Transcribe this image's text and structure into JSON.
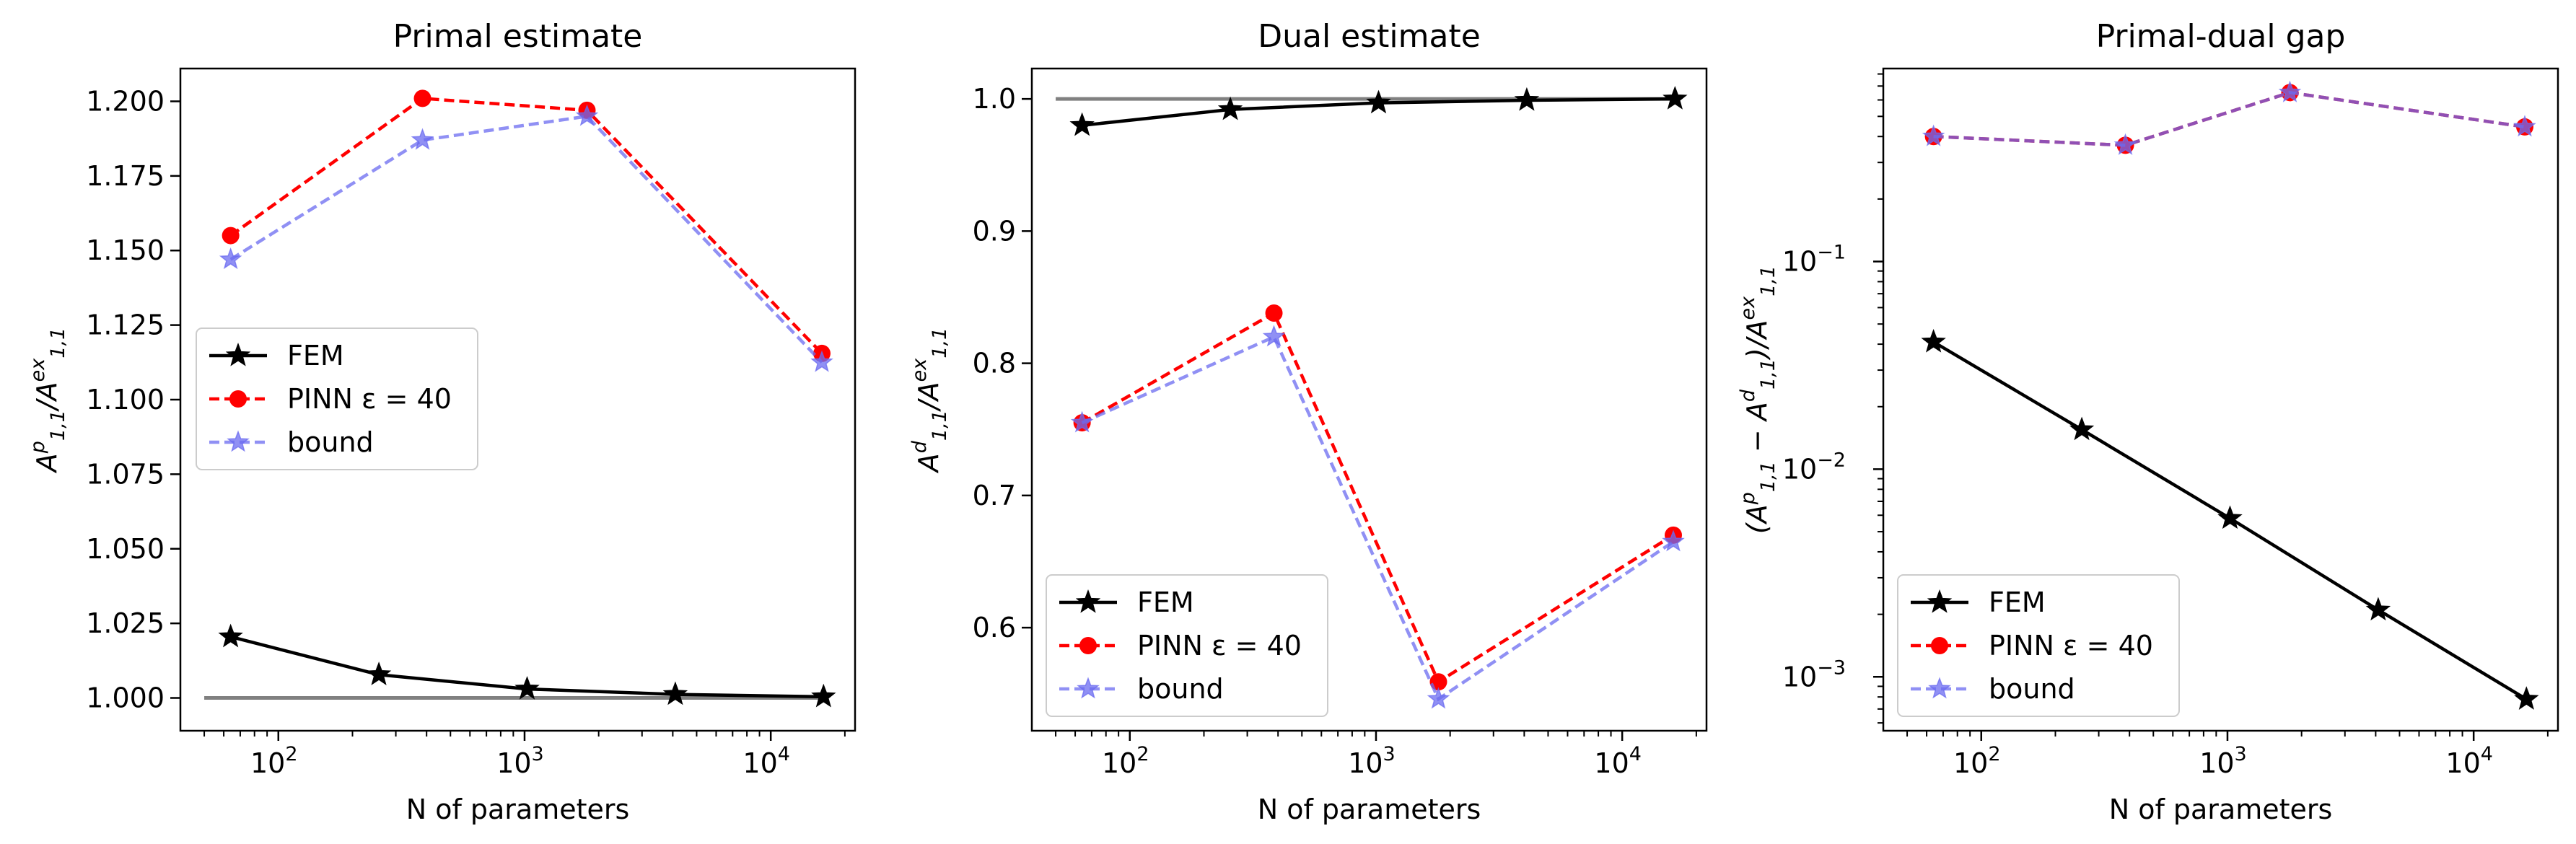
{
  "chart_data": [
    {
      "type": "line",
      "title": "Primal estimate",
      "xlabel": "N of parameters",
      "ylabel": "A^p_{1,1}/A^{ex}_{1,1}",
      "xscale": "log",
      "yscale": "linear",
      "xlim": [
        40,
        22000
      ],
      "ylim": [
        0.989,
        1.211
      ],
      "xticks": [
        {
          "value": 100,
          "label": "10",
          "exp": "2"
        },
        {
          "value": 1000,
          "label": "10",
          "exp": "3"
        },
        {
          "value": 10000,
          "label": "10",
          "exp": "4"
        }
      ],
      "yticks": [
        {
          "value": 1.0,
          "label": "1.000"
        },
        {
          "value": 1.025,
          "label": "1.025"
        },
        {
          "value": 1.05,
          "label": "1.050"
        },
        {
          "value": 1.075,
          "label": "1.075"
        },
        {
          "value": 1.1,
          "label": "1.100"
        },
        {
          "value": 1.125,
          "label": "1.125"
        },
        {
          "value": 1.15,
          "label": "1.150"
        },
        {
          "value": 1.175,
          "label": "1.175"
        },
        {
          "value": 1.2,
          "label": "1.200"
        }
      ],
      "legend_position": "center-left",
      "legend": [
        "FEM",
        "PINN ε = 40",
        "bound"
      ],
      "reference_line": {
        "x": [
          50,
          16384
        ],
        "y": [
          1.0,
          1.0
        ],
        "color": "#808080"
      },
      "series": [
        {
          "name": "FEM",
          "color": "#000000",
          "x": [
            64,
            256,
            1024,
            4096,
            16384
          ],
          "y": [
            1.0205,
            1.0078,
            1.003,
            1.0012,
            1.0004
          ]
        },
        {
          "name": "PINN ε = 40",
          "color": "#ff0000",
          "x": [
            64,
            385,
            1793,
            16129
          ],
          "y": [
            1.155,
            1.201,
            1.197,
            1.1155
          ]
        },
        {
          "name": "bound",
          "color": "#6b6bf0",
          "x": [
            64,
            385,
            1793,
            16129
          ],
          "y": [
            1.147,
            1.187,
            1.195,
            1.1125
          ]
        }
      ]
    },
    {
      "type": "line",
      "title": "Dual estimate",
      "xlabel": "N of parameters",
      "ylabel": "A^d_{1,1}/A^{ex}_{1,1}",
      "xscale": "log",
      "yscale": "linear",
      "xlim": [
        40,
        22000
      ],
      "ylim": [
        0.522,
        1.023
      ],
      "xticks": [
        {
          "value": 100,
          "label": "10",
          "exp": "2"
        },
        {
          "value": 1000,
          "label": "10",
          "exp": "3"
        },
        {
          "value": 10000,
          "label": "10",
          "exp": "4"
        }
      ],
      "yticks": [
        {
          "value": 0.6,
          "label": "0.6"
        },
        {
          "value": 0.7,
          "label": "0.7"
        },
        {
          "value": 0.8,
          "label": "0.8"
        },
        {
          "value": 0.9,
          "label": "0.9"
        },
        {
          "value": 1.0,
          "label": "1.0"
        }
      ],
      "legend_position": "lower-left",
      "legend": [
        "FEM",
        "PINN ε = 40",
        "bound"
      ],
      "reference_line": {
        "x": [
          50,
          16384
        ],
        "y": [
          1.0,
          1.0
        ],
        "color": "#808080"
      },
      "series": [
        {
          "name": "FEM",
          "color": "#000000",
          "x": [
            64,
            256,
            1024,
            4096,
            16384
          ],
          "y": [
            0.98,
            0.992,
            0.997,
            0.999,
            1.0
          ]
        },
        {
          "name": "PINN ε = 40",
          "color": "#ff0000",
          "x": [
            64,
            385,
            1793,
            16129
          ],
          "y": [
            0.755,
            0.838,
            0.559,
            0.67
          ]
        },
        {
          "name": "bound",
          "color": "#6b6bf0",
          "x": [
            64,
            385,
            1793,
            16129
          ],
          "y": [
            0.755,
            0.82,
            0.546,
            0.665
          ]
        }
      ]
    },
    {
      "type": "line",
      "title": "Primal-dual gap",
      "xlabel": "N of parameters",
      "ylabel": "(A^p_{1,1} − A^d_{1,1})/A^{ex}_{1,1}",
      "xscale": "log",
      "yscale": "log",
      "xlim": [
        40,
        22000
      ],
      "ylim": [
        0.00055,
        0.85
      ],
      "xticks": [
        {
          "value": 100,
          "label": "10",
          "exp": "2"
        },
        {
          "value": 1000,
          "label": "10",
          "exp": "3"
        },
        {
          "value": 10000,
          "label": "10",
          "exp": "4"
        }
      ],
      "yticks": [
        {
          "value": 0.001,
          "label": "10",
          "exp": "−3"
        },
        {
          "value": 0.01,
          "label": "10",
          "exp": "−2"
        },
        {
          "value": 0.1,
          "label": "10",
          "exp": "−1"
        }
      ],
      "legend_position": "lower-left",
      "legend": [
        "FEM",
        "PINN ε = 40",
        "bound"
      ],
      "series": [
        {
          "name": "FEM",
          "color": "#000000",
          "x": [
            64,
            256,
            1024,
            4096,
            16384
          ],
          "y": [
            0.041,
            0.0155,
            0.0058,
            0.0021,
            0.00078
          ]
        },
        {
          "name": "PINN ε = 40",
          "color": "#ff0000",
          "x": [
            64,
            385,
            1793,
            16129
          ],
          "y": [
            0.4,
            0.363,
            0.651,
            0.445
          ]
        },
        {
          "name": "bound",
          "color": "#6b6bf0",
          "x": [
            64,
            385,
            1793,
            16129
          ],
          "y": [
            0.4,
            0.363,
            0.651,
            0.445
          ]
        }
      ]
    }
  ]
}
